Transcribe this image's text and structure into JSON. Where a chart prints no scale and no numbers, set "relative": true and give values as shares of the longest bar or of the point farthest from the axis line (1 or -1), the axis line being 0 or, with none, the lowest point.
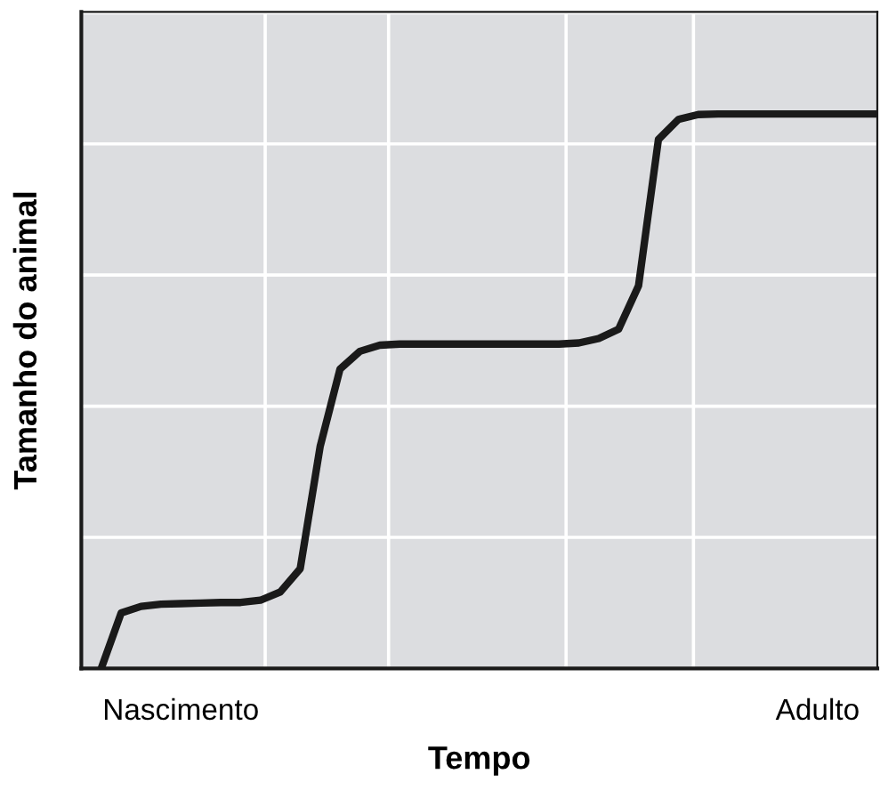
{
  "chart_data": {
    "type": "line",
    "relative": true,
    "xlabel": "Tempo",
    "ylabel": "Tamanho do animal",
    "categories": [
      null,
      null,
      null,
      null,
      null,
      "Nascimento",
      null,
      null,
      null,
      null,
      null,
      null,
      null,
      null,
      null,
      null,
      null,
      null,
      null,
      null,
      null,
      null,
      null,
      null,
      null,
      null,
      null,
      null,
      null,
      null,
      null,
      null,
      null,
      null,
      null,
      null,
      null,
      "Adulto",
      null,
      null,
      null
    ],
    "series": [
      {
        "color": "#1a1a1a",
        "values": [
          null,
          0,
          0.1,
          0.112,
          0.116,
          0.117,
          0.118,
          0.119,
          0.119,
          0.123,
          0.138,
          0.18,
          0.4,
          0.54,
          0.572,
          0.583,
          0.585,
          0.585,
          0.585,
          0.585,
          0.585,
          0.585,
          0.585,
          0.585,
          0.585,
          0.587,
          0.595,
          0.612,
          0.69,
          0.954,
          0.99,
          0.999,
          1,
          1,
          1,
          1,
          1,
          1,
          1,
          1,
          1
        ]
      }
    ],
    "grid": true,
    "line_style": "solid",
    "marker": "none"
  }
}
